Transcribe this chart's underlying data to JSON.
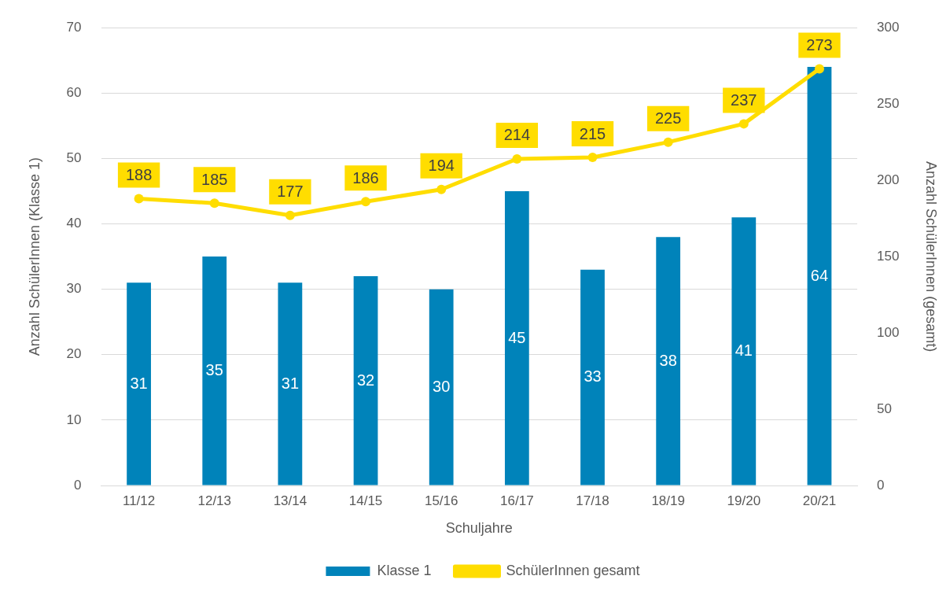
{
  "chart_data": {
    "type": "bar",
    "xlabel": "Schuljahre",
    "ylabel": "Anzahl SchülerInnen (Klasse 1)",
    "y2label": "Anzahl SchülerInnen (gesamt)",
    "categories": [
      "11/12",
      "12/13",
      "13/14",
      "14/15",
      "15/16",
      "16/17",
      "17/18",
      "18/19",
      "19/20",
      "20/21"
    ],
    "series": [
      {
        "name": "Klasse 1",
        "color": "#0083ba",
        "values": [
          31,
          35,
          31,
          32,
          30,
          45,
          33,
          38,
          41,
          64
        ]
      },
      {
        "name": "SchülerInnen gesamt",
        "type": "line",
        "axis": "y2",
        "color": "#ffdd00",
        "marker": "circle",
        "values": [
          188,
          185,
          177,
          186,
          194,
          214,
          215,
          225,
          237,
          273
        ]
      }
    ],
    "ylim": [
      0,
      70
    ],
    "yticks": [
      0,
      10,
      20,
      30,
      40,
      50,
      60,
      70
    ],
    "y2lim": [
      0,
      300
    ],
    "y2ticks": [
      0,
      50,
      100,
      150,
      200,
      250,
      300
    ],
    "grid": "y",
    "legend": "bottom",
    "data_labels": true
  }
}
